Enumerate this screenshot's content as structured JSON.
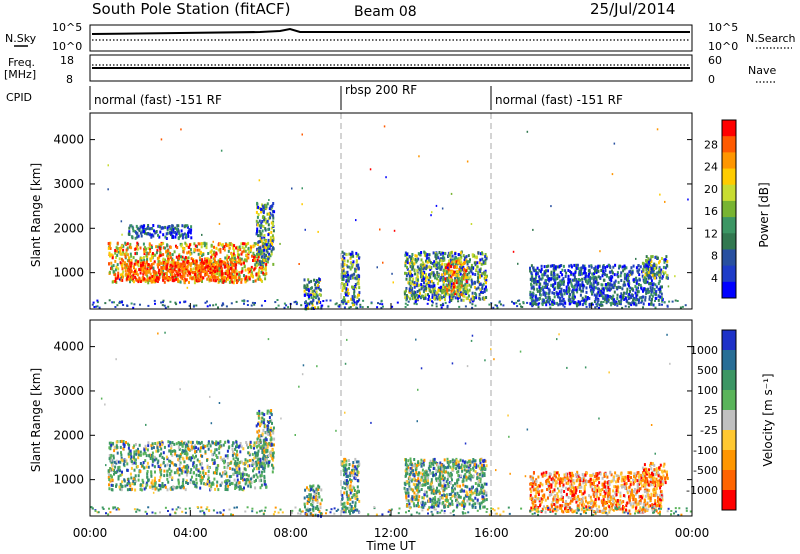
{
  "header": {
    "station": "South Pole Station (fitACF)",
    "beam": "Beam 08",
    "date": "25/Jul/2014"
  },
  "noise_panel": {
    "left_label": "N.Sky",
    "right_label": "N.Search",
    "left_ticks": [
      "10^5",
      "10^0"
    ],
    "right_ticks": [
      "10^5",
      "10^0"
    ]
  },
  "freq_panel": {
    "left_label_line1": "Freq.",
    "left_label_line2": "[MHz]",
    "right_label": "Nave",
    "left_ticks": [
      "18",
      "8"
    ],
    "right_ticks": [
      "60",
      "0"
    ]
  },
  "cpid": {
    "label": "CPID",
    "segments": [
      {
        "label": "normal (fast) -151 RF",
        "start_hour": 0,
        "end_hour": 10
      },
      {
        "label": "rbsp 200 RF",
        "start_hour": 10,
        "end_hour": 16
      },
      {
        "label": "normal (fast) -151 RF",
        "start_hour": 16,
        "end_hour": 24
      }
    ]
  },
  "power_colorbar": {
    "title": "Power [dB]",
    "ticks": [
      "28",
      "24",
      "20",
      "16",
      "12",
      "8",
      "4"
    ],
    "colors": [
      "#ff0000",
      "#ff5a00",
      "#ff9600",
      "#ffcc00",
      "#c8dc32",
      "#78b432",
      "#3c9664",
      "#327850",
      "#2850a0",
      "#1e3cc8",
      "#0000ff"
    ]
  },
  "velocity_colorbar": {
    "title": "Velocity [m s⁻¹]",
    "ticks": [
      "1000",
      "500",
      "100",
      "25",
      "-25",
      "-100",
      "-500",
      "-1000"
    ],
    "colors": [
      "#1e32c8",
      "#286e96",
      "#3c9664",
      "#5ab45a",
      "#c0c0c0",
      "#ffc832",
      "#ff9600",
      "#ff6400",
      "#ff0000"
    ]
  },
  "chart_data": [
    {
      "type": "heatmap",
      "title": "Power [dB]",
      "xlabel": "Time UT",
      "ylabel": "Slant Range [km]",
      "xlim": [
        0,
        24
      ],
      "ylim": [
        180,
        4600
      ],
      "y_ticks": [
        1000,
        2000,
        3000,
        4000
      ],
      "x_ticks": [
        "00:00",
        "04:00",
        "08:00",
        "12:00",
        "16:00",
        "20:00",
        "00:00"
      ],
      "scatter_regions": [
        {
          "t0": 0.7,
          "t1": 7.0,
          "r0": 800,
          "r1": 1700,
          "level": "high"
        },
        {
          "t0": 1.4,
          "t1": 5.8,
          "r0": 850,
          "r1": 1300,
          "level": "peak"
        },
        {
          "t0": 1.5,
          "t1": 4.0,
          "r0": 1800,
          "r1": 2100,
          "level": "low"
        },
        {
          "t0": 6.6,
          "t1": 7.3,
          "r0": 1200,
          "r1": 2600,
          "level": "mid"
        },
        {
          "t0": 8.5,
          "t1": 9.2,
          "r0": 200,
          "r1": 900,
          "level": "mid"
        },
        {
          "t0": 10.0,
          "t1": 10.7,
          "r0": 300,
          "r1": 1500,
          "level": "mid"
        },
        {
          "t0": 12.5,
          "t1": 15.8,
          "r0": 400,
          "r1": 1500,
          "level": "mid"
        },
        {
          "t0": 14.0,
          "t1": 15.0,
          "r0": 500,
          "r1": 1300,
          "level": "high"
        },
        {
          "t0": 17.5,
          "t1": 22.8,
          "r0": 300,
          "r1": 1200,
          "level": "low"
        },
        {
          "t0": 22.0,
          "t1": 23.0,
          "r0": 900,
          "r1": 1400,
          "level": "mid"
        }
      ]
    },
    {
      "type": "heatmap",
      "title": "Velocity [m s⁻¹]",
      "xlabel": "Time UT",
      "ylabel": "Slant Range [km]",
      "xlim": [
        0,
        24
      ],
      "ylim": [
        180,
        4600
      ],
      "y_ticks": [
        1000,
        2000,
        3000,
        4000
      ],
      "x_ticks": [
        "00:00",
        "04:00",
        "08:00",
        "12:00",
        "16:00",
        "20:00",
        "00:00"
      ],
      "scatter_regions": [
        {
          "t0": 0.7,
          "t1": 7.0,
          "r0": 800,
          "r1": 1900,
          "level": "mixed"
        },
        {
          "t0": 6.6,
          "t1": 7.3,
          "r0": 1200,
          "r1": 2600,
          "level": "mixed"
        },
        {
          "t0": 8.5,
          "t1": 9.2,
          "r0": 200,
          "r1": 900,
          "level": "mixed"
        },
        {
          "t0": 10.0,
          "t1": 10.7,
          "r0": 300,
          "r1": 1500,
          "level": "mixed"
        },
        {
          "t0": 12.5,
          "t1": 15.8,
          "r0": 400,
          "r1": 1500,
          "level": "mixed"
        },
        {
          "t0": 17.5,
          "t1": 22.8,
          "r0": 300,
          "r1": 1200,
          "level": "warm"
        },
        {
          "t0": 22.0,
          "t1": 23.0,
          "r0": 900,
          "r1": 1400,
          "level": "warm"
        }
      ]
    }
  ]
}
